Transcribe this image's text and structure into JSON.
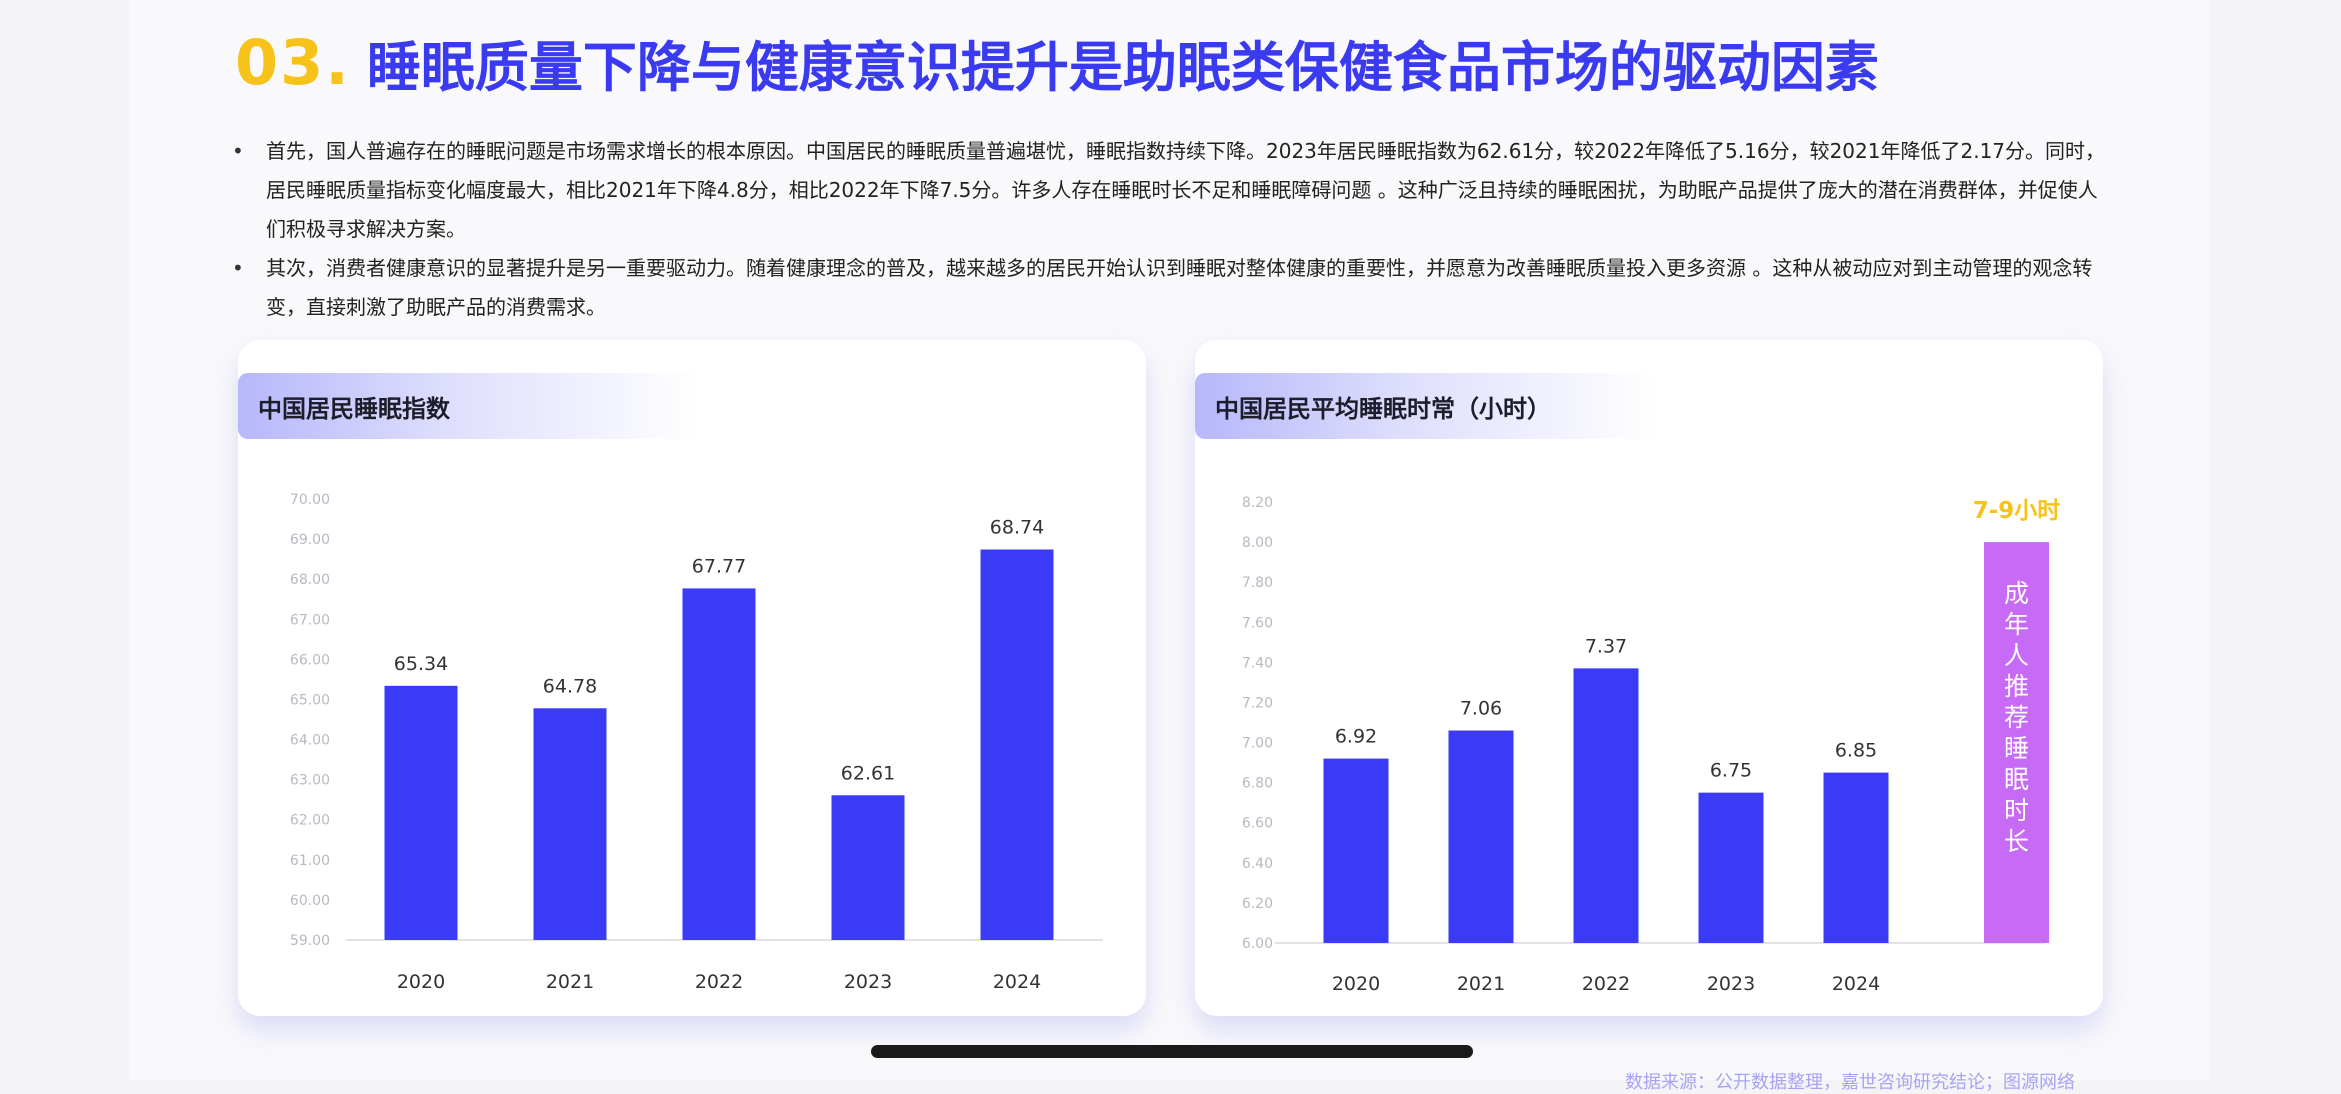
{
  "title": {
    "number": "03.",
    "text": "睡眠质量下降与健康意识提升是助眠类保健食品市场的驱动因素"
  },
  "bullets": [
    {
      "marker": "•",
      "text": "首先，国人普遍存在的睡眠问题是市场需求增长的根本原因。中国居民的睡眠质量普遍堪忧，睡眠指数持续下降。2023年居民睡眠指数为62.61分，较2022年降低了5.16分，较2021年降低了2.17分。同时，居民睡眠质量指标变化幅度最大，相比2021年下降4.8分，相比2022年下降7.5分。许多人存在睡眠时长不足和睡眠障碍问题 。这种广泛且持续的睡眠困扰，为助眠产品提供了庞大的潜在消费群体，并促使人们积极寻求解决方案。"
    },
    {
      "marker": "•",
      "text": "其次，消费者健康意识的显著提升是另一重要驱动力。随着健康理念的普及，越来越多的居民开始认识到睡眠对整体健康的重要性，并愿意为改善睡眠质量投入更多资源 。这种从被动应对到主动管理的观念转变，直接刺激了助眠产品的消费需求。"
    }
  ],
  "source_note": "数据来源：公开数据整理，嘉世咨询研究结论；图源网络",
  "colors": {
    "accent_blue": "#3a3af7",
    "accent_yellow": "#f7c21a",
    "accent_purple": "#c76af5"
  },
  "chart_data": [
    {
      "type": "bar",
      "title": "中国居民睡眠指数",
      "categories": [
        "2020",
        "2021",
        "2022",
        "2023",
        "2024"
      ],
      "values": [
        65.34,
        64.78,
        67.77,
        62.61,
        68.74
      ],
      "value_labels": [
        "65.34",
        "64.78",
        "67.77",
        "62.61",
        "68.74"
      ],
      "ylim": [
        59,
        70
      ],
      "yticks": [
        "59.00",
        "60.00",
        "61.00",
        "62.00",
        "63.00",
        "64.00",
        "65.00",
        "66.00",
        "67.00",
        "68.00",
        "69.00",
        "70.00"
      ],
      "xlabel": "",
      "ylabel": "",
      "grid": false
    },
    {
      "type": "bar",
      "title": "中国居民平均睡眠时常（小时）",
      "categories": [
        "2020",
        "2021",
        "2022",
        "2023",
        "2024"
      ],
      "values": [
        6.92,
        7.06,
        7.37,
        6.75,
        6.85
      ],
      "value_labels": [
        "6.92",
        "7.06",
        "7.37",
        "6.75",
        "6.85"
      ],
      "ylim": [
        6.0,
        8.2
      ],
      "yticks": [
        "6.00",
        "6.20",
        "6.40",
        "6.60",
        "6.80",
        "7.00",
        "7.20",
        "7.40",
        "7.60",
        "7.80",
        "8.00",
        "8.20"
      ],
      "xlabel": "",
      "ylabel": "",
      "grid": false,
      "annotation": {
        "label": "7-9小时",
        "text": "成年人推荐睡眠时长",
        "from": 6.0,
        "to": 8.0
      }
    }
  ]
}
